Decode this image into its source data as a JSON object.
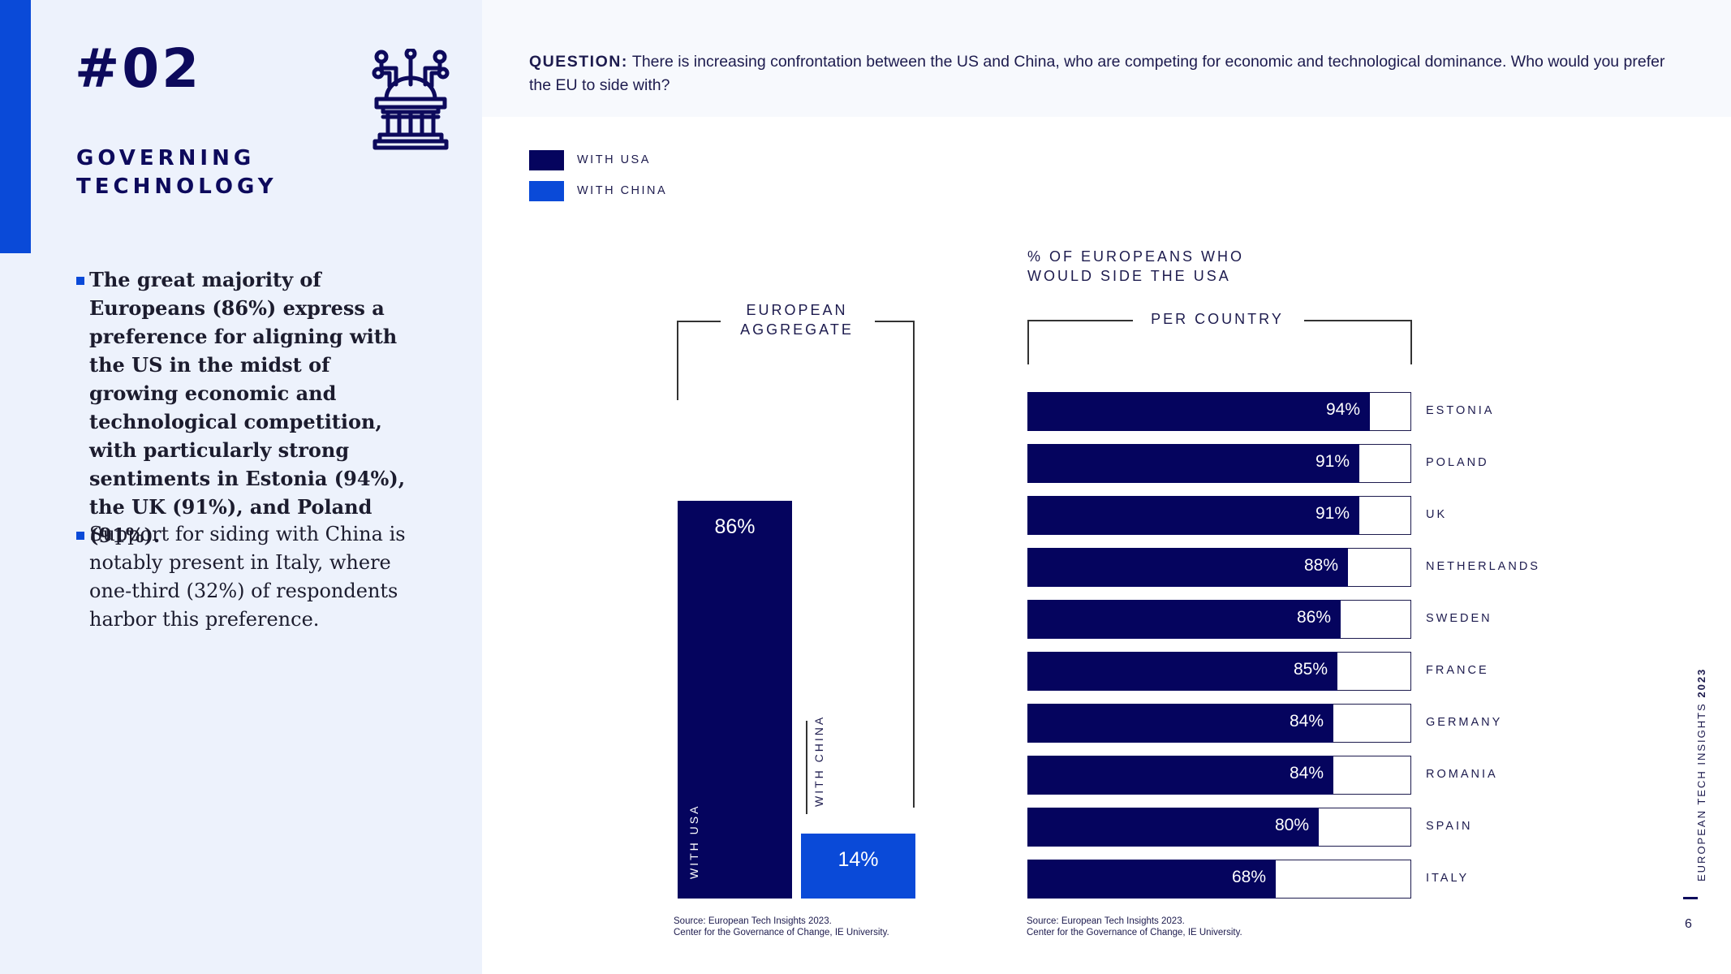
{
  "section": {
    "number": "#02",
    "title": "GOVERNING TECHNOLOGY",
    "icon": "government-circuit-icon"
  },
  "bullets": [
    "The great majority of Europeans (86%) express a preference for aligning with the US in the midst of growing economic and technological competition, with particularly strong sentiments in Estonia (94%), the UK (91%), and Poland (91%).",
    "Support for siding with China is notably present in Italy, where one-third (32%) of respondents harbor this preference."
  ],
  "question": {
    "label": "QUESTION:",
    "text": "There is increasing confrontation between the US and China, who are competing for economic and technological dominance. Who would you prefer the EU to side with?"
  },
  "legend": [
    {
      "label": "WITH USA",
      "color": "#05045e"
    },
    {
      "label": "WITH CHINA",
      "color": "#0a4ad8"
    }
  ],
  "colors": {
    "usa": "#05045e",
    "china": "#0a4ad8",
    "accent": "#0a4ad8",
    "navy": "#0d0a5c"
  },
  "chart_data": [
    {
      "type": "bar",
      "title": "EUROPEAN AGGREGATE",
      "categories": [
        "WITH USA",
        "WITH CHINA"
      ],
      "values": [
        86,
        14
      ],
      "labels": [
        "86%",
        "14%"
      ],
      "ylim": [
        0,
        100
      ]
    },
    {
      "type": "bar",
      "orientation": "horizontal",
      "title": "% OF EUROPEANS WHO WOULD SIDE THE USA",
      "subtitle": "PER COUNTRY",
      "categories": [
        "ESTONIA",
        "POLAND",
        "UK",
        "NETHERLANDS",
        "SWEDEN",
        "FRANCE",
        "GERMANY",
        "ROMANIA",
        "SPAIN",
        "ITALY"
      ],
      "values": [
        94,
        91,
        91,
        88,
        86,
        85,
        84,
        84,
        80,
        68
      ],
      "labels": [
        "94%",
        "91%",
        "91%",
        "88%",
        "86%",
        "85%",
        "84%",
        "84%",
        "80%",
        "68%"
      ],
      "xlim": [
        0,
        100
      ]
    }
  ],
  "source": [
    "Source: European Tech Insights 2023.",
    "Center for the Governance of Change, IE University."
  ],
  "footer": {
    "label": "EUROPEAN TECH INSIGHTS",
    "year": "2023",
    "page": "6"
  }
}
